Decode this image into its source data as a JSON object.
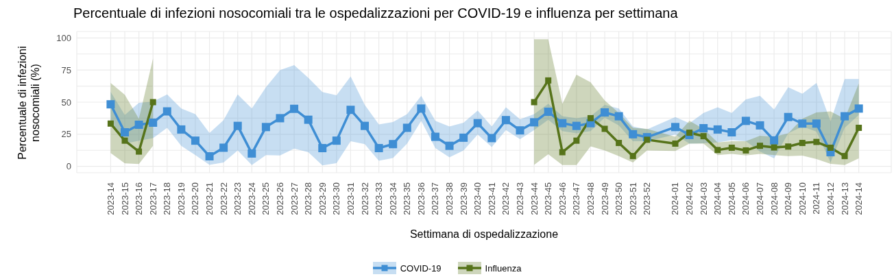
{
  "chart_data": {
    "type": "line",
    "title": "Percentuale di infezioni nosocomiali tra le ospedalizzazioni per COVID-19 e influenza per settimana",
    "xlabel": "Settimana di ospedalizzazione",
    "ylabel": "Percentuale di infezioni nosocomiali (%)",
    "categories": [
      "2023-14",
      "2023-15",
      "2023-16",
      "2023-17",
      "2023-18",
      "2023-19",
      "2023-20",
      "2023-21",
      "2023-22",
      "2023-23",
      "2023-24",
      "2023-25",
      "2023-26",
      "2023-27",
      "2023-28",
      "2023-29",
      "2023-30",
      "2023-31",
      "2023-32",
      "2023-33",
      "2023-34",
      "2023-35",
      "2023-36",
      "2023-37",
      "2023-38",
      "2023-39",
      "2023-40",
      "2023-41",
      "2023-42",
      "2023-43",
      "2023-44",
      "2023-45",
      "2023-46",
      "2023-47",
      "2023-48",
      "2023-49",
      "2023-50",
      "2023-51",
      "2023-52",
      null,
      "2024-01",
      "2024-02",
      "2024-03",
      "2024-04",
      "2024-05",
      "2024-06",
      "2024-07",
      "2024-08",
      "2024-09",
      "2024-10",
      "2024-11",
      "2024-12",
      "2024-13",
      "2024-14"
    ],
    "series": [
      {
        "name": "COVID-19",
        "color": "#3f8ed4",
        "values": [
          48.3,
          26.5,
          32.4,
          34,
          42.8,
          28.7,
          20,
          7.8,
          14.5,
          31.5,
          10,
          30.6,
          37.5,
          44.8,
          36.3,
          14.2,
          20,
          44,
          31.5,
          14.2,
          17.3,
          30,
          45,
          23,
          16,
          22.3,
          33.6,
          22,
          36,
          28,
          34.3,
          42.5,
          33.6,
          31.5,
          33.6,
          42,
          39,
          25,
          22.7,
          null,
          30.6,
          24.4,
          29.7,
          28.7,
          26.5,
          35.4,
          31.9,
          20.2,
          38.4,
          33.3,
          33.3,
          11,
          39,
          45
        ],
        "lower": [
          35,
          17.7,
          20,
          22,
          30,
          16,
          8.8,
          1.2,
          3,
          12.4,
          1,
          8.8,
          8.5,
          13.8,
          11,
          0.7,
          2.5,
          19.5,
          17.3,
          4.4,
          6.5,
          17.7,
          35.4,
          14.2,
          7,
          12.4,
          24.8,
          15,
          28.3,
          21.2,
          28.3,
          36.3,
          27.4,
          25.7,
          27.4,
          38,
          31.9,
          19.5,
          19.5,
          null,
          24.8,
          17.7,
          18,
          18.6,
          20.4,
          19.5,
          11.5,
          6.2,
          25.7,
          31,
          27,
          3,
          30,
          40
        ],
        "upper": [
          58,
          40,
          49.5,
          50.4,
          56,
          45,
          40.7,
          26,
          36,
          56,
          45,
          61.6,
          75,
          78.8,
          69,
          57.9,
          55.4,
          70,
          47.8,
          32.7,
          34.5,
          40.7,
          54.9,
          35.4,
          31,
          34,
          43.4,
          31,
          46,
          36.6,
          40.7,
          48.7,
          39,
          37.5,
          39,
          47.8,
          45,
          31,
          28.8,
          null,
          38.4,
          33.6,
          41.6,
          46,
          41.6,
          52.2,
          54.9,
          44.2,
          61.6,
          56.6,
          65,
          35,
          68,
          68
        ]
      },
      {
        "name": "Influenza",
        "color": "#56731a",
        "values": [
          33.3,
          20,
          11.5,
          50,
          null,
          null,
          null,
          null,
          null,
          null,
          null,
          null,
          null,
          null,
          null,
          null,
          null,
          null,
          null,
          null,
          null,
          null,
          null,
          null,
          null,
          null,
          null,
          null,
          null,
          null,
          50,
          66.9,
          11,
          20,
          37.5,
          29.2,
          18.2,
          8,
          20.7,
          null,
          17.7,
          26.2,
          23.5,
          12.7,
          14.5,
          12.4,
          16,
          14.7,
          15.4,
          18.2,
          19,
          14.5,
          8,
          30
        ],
        "lower": [
          10.3,
          2.3,
          1.8,
          16,
          null,
          null,
          null,
          null,
          null,
          null,
          null,
          null,
          null,
          null,
          null,
          null,
          null,
          null,
          null,
          null,
          null,
          null,
          null,
          null,
          null,
          null,
          null,
          null,
          null,
          null,
          1.2,
          9.4,
          1,
          1,
          15.6,
          12.4,
          8,
          3,
          12.4,
          null,
          11.9,
          17.7,
          17.7,
          8.8,
          9.7,
          8.5,
          9.7,
          8.8,
          8,
          8.3,
          5.7,
          2,
          1,
          6.2
        ],
        "upper": [
          65,
          55.7,
          37,
          84,
          null,
          null,
          null,
          null,
          null,
          null,
          null,
          null,
          null,
          null,
          null,
          null,
          null,
          null,
          null,
          null,
          null,
          null,
          null,
          null,
          null,
          null,
          null,
          null,
          null,
          null,
          99,
          99,
          48.7,
          71.3,
          65.5,
          51.3,
          41.6,
          30,
          29.2,
          null,
          23,
          35.4,
          29.2,
          18.6,
          19.5,
          19.5,
          23.9,
          23,
          25.7,
          37,
          42,
          42.8,
          37,
          64.5
        ]
      }
    ],
    "ylim": [
      -5,
      105
    ],
    "yticks": [
      0,
      {
        "value": 12.5,
        "label": null
      },
      25,
      {
        "value": 37.5,
        "label": null
      },
      50,
      {
        "value": 62.5,
        "label": null
      },
      75,
      {
        "value": 87.5,
        "label": null
      },
      100
    ],
    "grid": true,
    "legend": "bottom",
    "marker": "square",
    "line_style": "solid"
  }
}
